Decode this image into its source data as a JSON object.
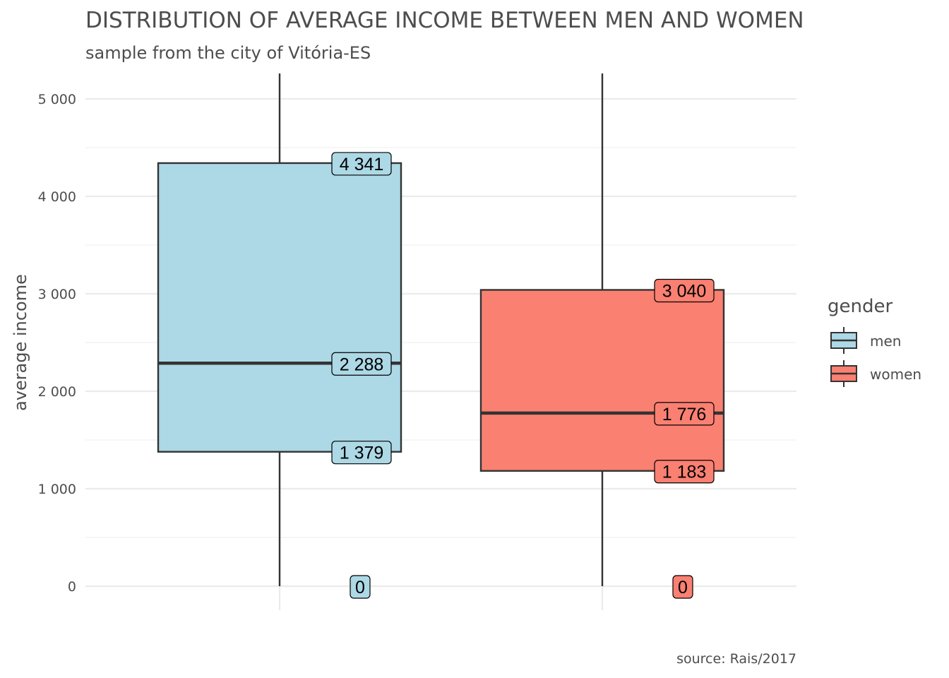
{
  "chart_data": {
    "type": "boxplot",
    "title": "DISTRIBUTION OF AVERAGE INCOME BETWEEN MEN AND WOMEN",
    "subtitle": "sample from the city of Vitória-ES",
    "ylabel": "average income",
    "caption": "source: Rais/2017",
    "ylim": [
      -250,
      5250
    ],
    "y_ticks": [
      {
        "value": 0,
        "label": "0"
      },
      {
        "value": 1000,
        "label": "1 000"
      },
      {
        "value": 2000,
        "label": "2 000"
      },
      {
        "value": 3000,
        "label": "3 000"
      },
      {
        "value": 4000,
        "label": "4 000"
      },
      {
        "value": 5000,
        "label": "5 000"
      }
    ],
    "grid": true,
    "legend": {
      "title": "gender",
      "position": "right",
      "entries": [
        {
          "label": "men",
          "color": "#add8e6"
        },
        {
          "label": "women",
          "color": "#fa8072"
        }
      ]
    },
    "series": [
      {
        "name": "men",
        "color": "#add8e6",
        "whisker_low": 0,
        "q1": 1379,
        "median": 2288,
        "q3": 4341,
        "whisker_high_extends_past_top": true,
        "labels": {
          "q1": "1 379",
          "median": "2 288",
          "q3": "4 341",
          "min": "0"
        }
      },
      {
        "name": "women",
        "color": "#fa8072",
        "whisker_low": 0,
        "q1": 1183,
        "median": 1776,
        "q3": 3040,
        "whisker_high_extends_past_top": true,
        "labels": {
          "q1": "1 183",
          "median": "1 776",
          "q3": "3 040",
          "min": "0"
        }
      }
    ]
  }
}
